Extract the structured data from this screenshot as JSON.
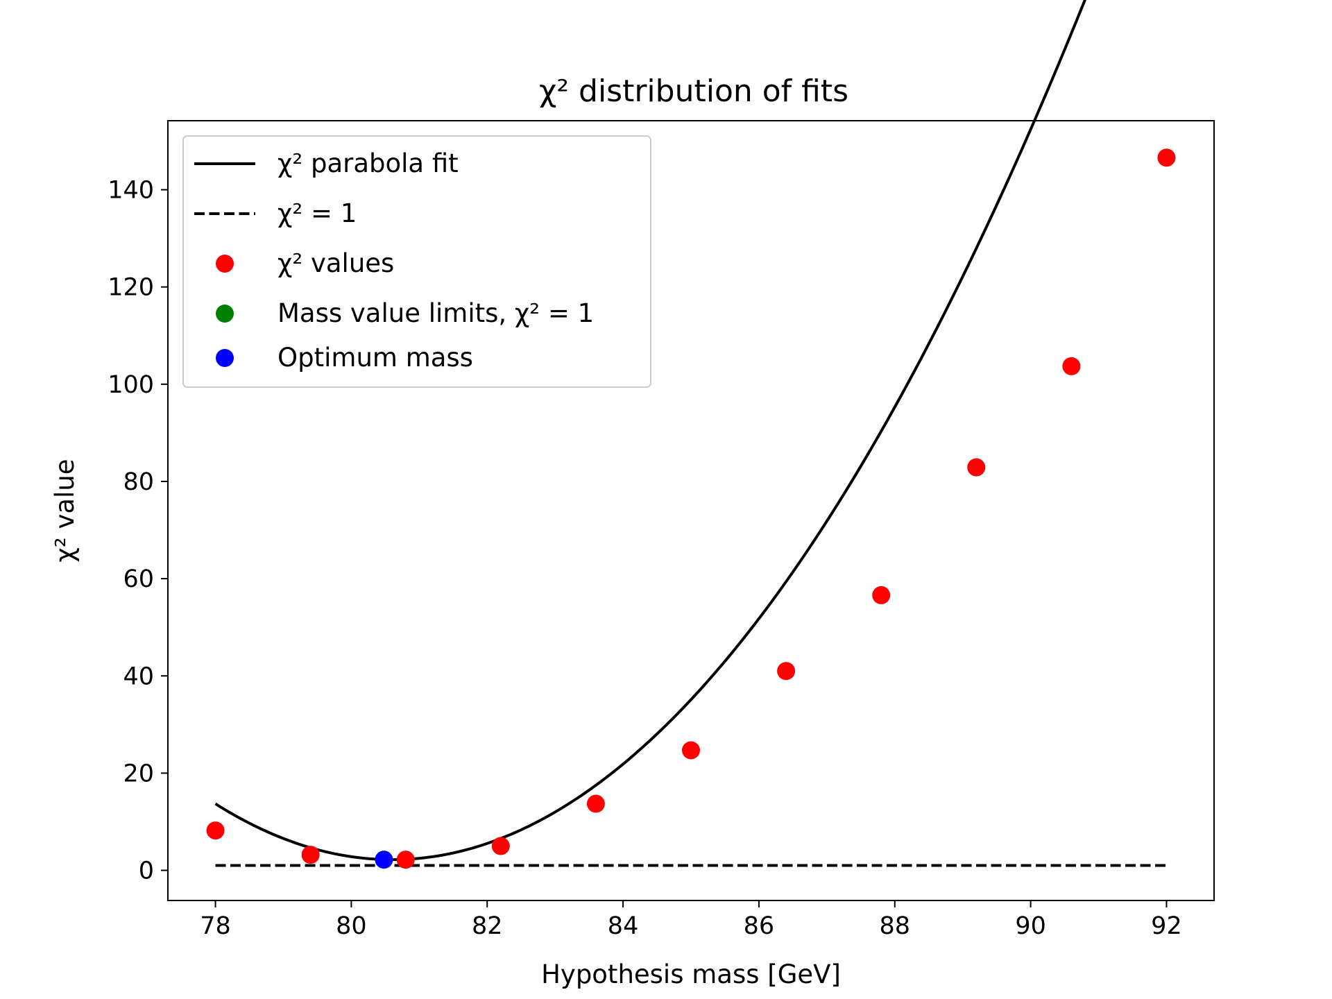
{
  "chart_data": {
    "type": "scatter",
    "title": "χ² distribution of fits",
    "xlabel": "Hypothesis mass [GeV]",
    "ylabel": "χ² value",
    "xlim": [
      77.3,
      92.7
    ],
    "ylim": [
      -6.2,
      154.2
    ],
    "xticks": [
      78,
      80,
      82,
      84,
      86,
      88,
      90,
      92
    ],
    "yticks": [
      0,
      20,
      40,
      60,
      80,
      100,
      120,
      140
    ],
    "grid": false,
    "legend_position": "upper-left",
    "colors": {
      "fit": "#000000",
      "threshold": "#000000",
      "values": "#ff0000",
      "limits": "#008000",
      "optimum": "#0000ff"
    },
    "series": [
      {
        "name": "χ² parabola fit",
        "kind": "line",
        "style": "solid",
        "equation": "y = 1.7*(x - 80.6)^2 + 2.2",
        "x_range": [
          78,
          92
        ]
      },
      {
        "name": "χ² = 1",
        "kind": "line",
        "style": "dashed",
        "x": [
          78,
          92
        ],
        "y": [
          1,
          1
        ]
      },
      {
        "name": "χ² values",
        "kind": "scatter",
        "x": [
          78.0,
          79.4,
          80.8,
          82.2,
          83.6,
          85.0,
          86.4,
          87.8,
          89.2,
          90.6,
          92.0
        ],
        "y": [
          8.2,
          3.2,
          2.2,
          5.0,
          13.7,
          24.7,
          41.0,
          56.6,
          82.9,
          103.7,
          146.6
        ]
      },
      {
        "name": "Mass value limits, χ² = 1",
        "kind": "scatter",
        "x": [],
        "y": []
      },
      {
        "name": "Optimum mass",
        "kind": "scatter",
        "x": [
          80.48
        ],
        "y": [
          2.2
        ]
      }
    ]
  }
}
